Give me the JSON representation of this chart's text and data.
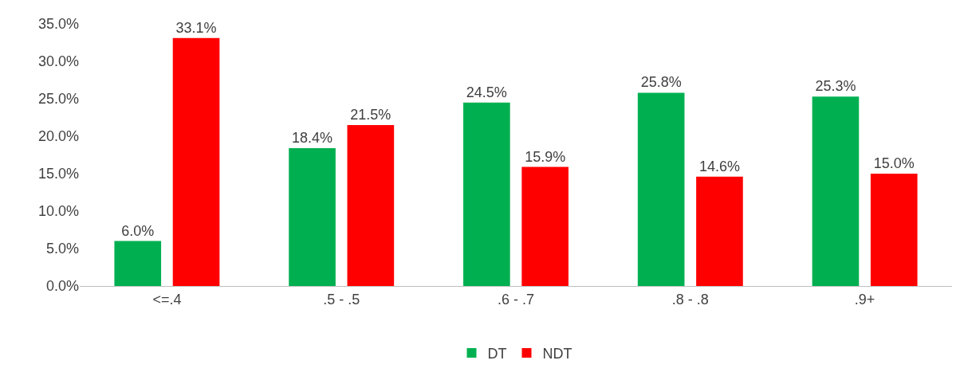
{
  "chart_data": {
    "type": "bar",
    "categories": [
      "<=.4",
      ".5 - .5",
      ".6 - .7",
      ".8 - .8",
      ".9+"
    ],
    "series": [
      {
        "name": "DT",
        "color": "#00b050",
        "values": [
          6.0,
          18.4,
          24.5,
          25.8,
          25.3
        ],
        "value_labels": [
          "6.0%",
          "18.4%",
          "24.5%",
          "25.8%",
          "25.3%"
        ]
      },
      {
        "name": "NDT",
        "color": "#ff0000",
        "values": [
          33.1,
          21.5,
          15.9,
          14.6,
          15.0
        ],
        "value_labels": [
          "33.1%",
          "21.5%",
          "15.9%",
          "14.6%",
          "15.0%"
        ]
      }
    ],
    "ylim": [
      0,
      35
    ],
    "yticks": [
      {
        "value": 0,
        "label": "0.0%"
      },
      {
        "value": 5,
        "label": "5.0%"
      },
      {
        "value": 10,
        "label": "10.0%"
      },
      {
        "value": 15,
        "label": "15.0%"
      },
      {
        "value": 20,
        "label": "20.0%"
      },
      {
        "value": 25,
        "label": "25.0%"
      },
      {
        "value": 30,
        "label": "30.0%"
      },
      {
        "value": 35,
        "label": "35.0%"
      }
    ],
    "grid": false,
    "legend": "bottom"
  }
}
